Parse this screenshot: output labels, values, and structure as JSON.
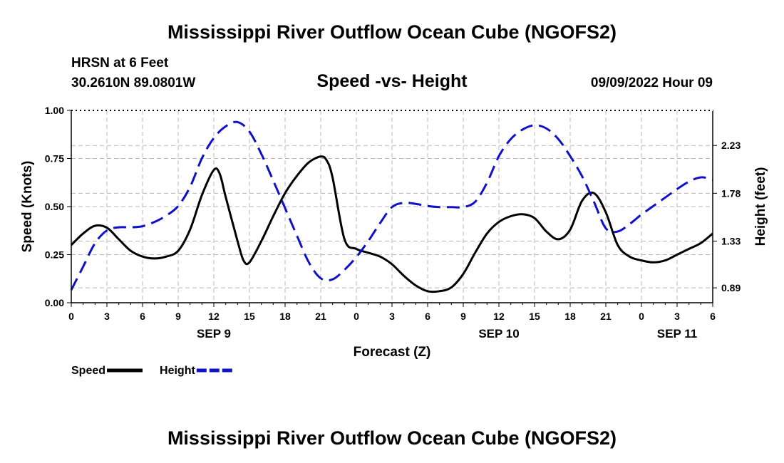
{
  "header": {
    "title": "Mississippi River Outflow Ocean Cube (NGOFS2)",
    "station": "HRSN at 6 Feet",
    "coords": "30.2610N  89.0801W",
    "subtitle": "Speed -vs- Height",
    "datestamp": "09/09/2022 Hour 09"
  },
  "footer": {
    "title": "Mississippi River Outflow Ocean Cube (NGOFS2)"
  },
  "colors": {
    "speed": "#000000",
    "height": "#1010c8",
    "grid": "#b8b8b8"
  },
  "chart_data": {
    "type": "line",
    "title": "Speed -vs- Height",
    "xlabel": "Forecast (Z)",
    "ylabel": "Speed (Knots)",
    "y2label": "Height (feet)",
    "xlim": [
      0,
      54
    ],
    "ylim": [
      0,
      1
    ],
    "y2lim": [
      0.75,
      2.56
    ],
    "x_ticks": [
      0,
      3,
      6,
      9,
      12,
      15,
      18,
      21,
      24,
      27,
      30,
      33,
      36,
      39,
      42,
      45,
      48,
      51,
      54
    ],
    "x_tick_labels": [
      "0",
      "3",
      "6",
      "9",
      "12",
      "15",
      "18",
      "21",
      "0",
      "3",
      "6",
      "9",
      "12",
      "15",
      "18",
      "21",
      "0",
      "3",
      "6"
    ],
    "y_ticks": [
      0,
      0.25,
      0.5,
      0.75,
      1
    ],
    "y_tick_labels": [
      "0.00",
      "0.25",
      "0.50",
      "0.75",
      "1.00"
    ],
    "y2_ticks": [
      0.89,
      1.33,
      1.78,
      2.23
    ],
    "y2_tick_labels": [
      "0.89",
      "1.33",
      "1.78",
      "2.23"
    ],
    "day_labels": [
      {
        "x": 12,
        "label": "SEP 9"
      },
      {
        "x": 36,
        "label": "SEP 10"
      },
      {
        "x": 51,
        "label": "SEP 11"
      }
    ],
    "legend": [
      {
        "name": "Speed",
        "style": "solid"
      },
      {
        "name": "Height",
        "style": "dashed"
      }
    ],
    "series": [
      {
        "name": "Speed",
        "axis": "left",
        "x": [
          0,
          1,
          2,
          3,
          4,
          5,
          6,
          7,
          8,
          9,
          10,
          11,
          12,
          12.5,
          13,
          14,
          14.5,
          15,
          16,
          17,
          18,
          19,
          20,
          21,
          21.5,
          22,
          23,
          24,
          25,
          26,
          27,
          28,
          29,
          30,
          31,
          32,
          33,
          34,
          35,
          36,
          37,
          38,
          39,
          40,
          41,
          42,
          43,
          44,
          45,
          46,
          47,
          48,
          49,
          50,
          51,
          52,
          53,
          54
        ],
        "values": [
          0.3,
          0.36,
          0.4,
          0.39,
          0.33,
          0.27,
          0.24,
          0.23,
          0.24,
          0.27,
          0.38,
          0.56,
          0.69,
          0.67,
          0.55,
          0.32,
          0.22,
          0.21,
          0.32,
          0.45,
          0.57,
          0.66,
          0.73,
          0.76,
          0.74,
          0.65,
          0.33,
          0.28,
          0.26,
          0.24,
          0.2,
          0.14,
          0.09,
          0.06,
          0.06,
          0.08,
          0.15,
          0.26,
          0.36,
          0.42,
          0.45,
          0.46,
          0.44,
          0.37,
          0.33,
          0.38,
          0.53,
          0.57,
          0.47,
          0.3,
          0.24,
          0.22,
          0.21,
          0.22,
          0.25,
          0.28,
          0.31,
          0.36
        ]
      },
      {
        "name": "Height",
        "axis": "right",
        "x": [
          0,
          1,
          2,
          3,
          4,
          5,
          6,
          7,
          8,
          9,
          10,
          11,
          12,
          13,
          14,
          15,
          16,
          17,
          18,
          19,
          20,
          21,
          22,
          23,
          24,
          25,
          26,
          27,
          28,
          29,
          30,
          31,
          32,
          33,
          34,
          35,
          36,
          37,
          38,
          39,
          40,
          41,
          42,
          43,
          44,
          45,
          46,
          47,
          48,
          49,
          50,
          51,
          52,
          53,
          54
        ],
        "values": [
          0.87,
          1.09,
          1.31,
          1.43,
          1.46,
          1.46,
          1.47,
          1.51,
          1.57,
          1.66,
          1.84,
          2.11,
          2.3,
          2.41,
          2.45,
          2.36,
          2.15,
          1.9,
          1.64,
          1.38,
          1.13,
          0.98,
          0.97,
          1.06,
          1.18,
          1.33,
          1.5,
          1.65,
          1.69,
          1.68,
          1.66,
          1.65,
          1.65,
          1.65,
          1.7,
          1.88,
          2.13,
          2.29,
          2.38,
          2.42,
          2.39,
          2.29,
          2.13,
          1.94,
          1.7,
          1.45,
          1.42,
          1.49,
          1.58,
          1.66,
          1.74,
          1.82,
          1.89,
          1.93,
          1.91
        ]
      }
    ]
  }
}
